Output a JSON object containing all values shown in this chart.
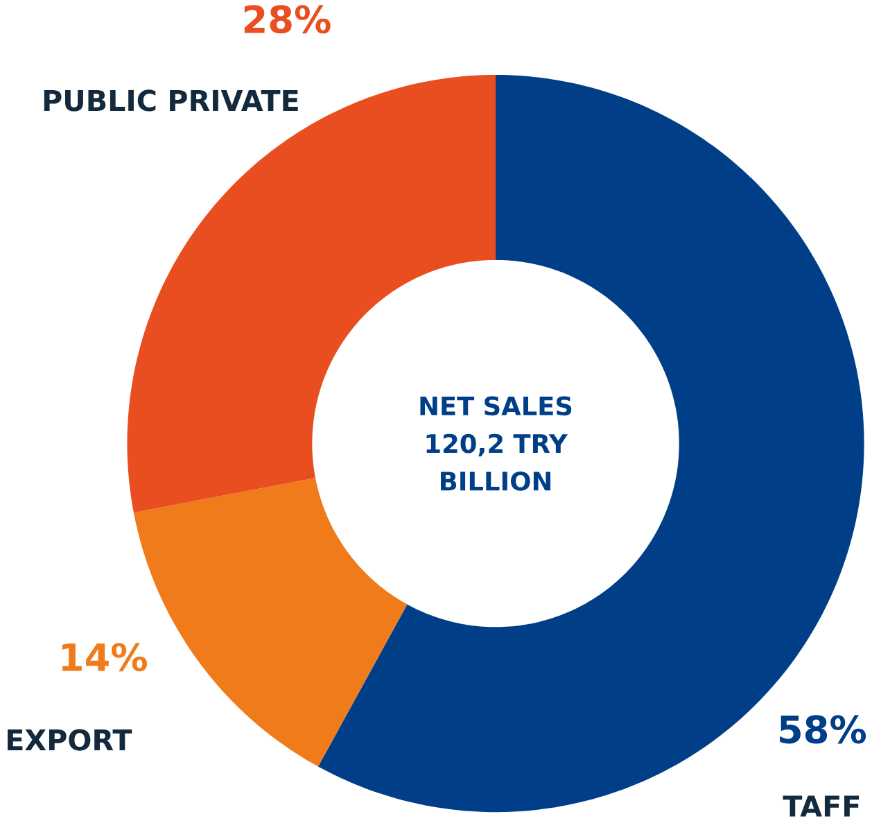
{
  "chart_data": {
    "type": "donut",
    "title": "NET SALES 120,2 TRY BILLION",
    "categories": [
      "TAFF",
      "EXPORT",
      "PUBLIC PRIVATE"
    ],
    "values": [
      58,
      14,
      28
    ],
    "value_labels": [
      "58%",
      "14%",
      "28%"
    ],
    "colors": [
      "#003f87",
      "#ef7b1b",
      "#e84e1f"
    ]
  }
}
